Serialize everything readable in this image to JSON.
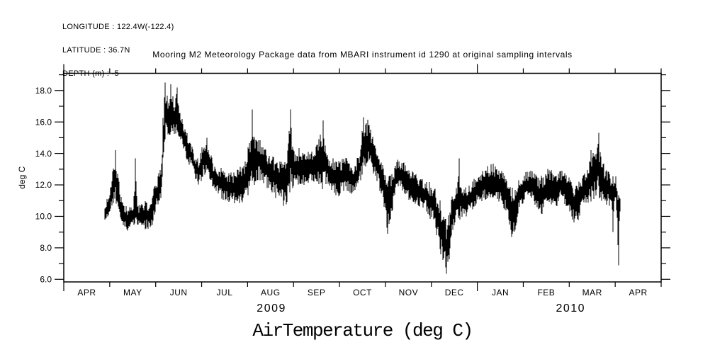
{
  "header": {
    "lines": [
      "LONGITUDE : 122.4W(-122.4)",
      "LATITUDE : 36.7N",
      "DEPTH (m) : -5"
    ]
  },
  "title": "Mooring M2 Meteorology Package data from MBARI instrument id 1290 at original sampling intervals",
  "footer_label": "AirTemperature (deg C)",
  "colors": {
    "ink": "#000000",
    "background": "#ffffff"
  },
  "chart_data": {
    "type": "line",
    "title": "Mooring M2 Meteorology Package data from MBARI instrument id 1290 at original sampling intervals",
    "ylabel": "deg C",
    "xlabel": "AirTemperature (deg C)",
    "ylim": [
      5.83,
      19.09
    ],
    "y_major_ticks": [
      6,
      8,
      10,
      12,
      14,
      16,
      18
    ],
    "y_tick_labels": [
      "6.0",
      "8.0",
      "10.0",
      "12.0",
      "14.0",
      "16.0",
      "18.0"
    ],
    "y_minor_step": 1,
    "grid": false,
    "legend": "none",
    "x_month_labels": [
      "APR",
      "MAY",
      "JUN",
      "JUL",
      "AUG",
      "SEP",
      "OCT",
      "NOV",
      "DEC",
      "JAN",
      "FEB",
      "MAR",
      "APR"
    ],
    "x_major_tick_months": [
      0,
      9
    ],
    "x_year_labels": [
      {
        "label": "2009",
        "t": 4.52
      },
      {
        "label": "2010",
        "t": 11.03
      }
    ],
    "series": [
      {
        "name": "AirTemperature",
        "units": "deg C",
        "t_start": 0.894,
        "t_end": 12.1,
        "envelope": [
          [
            0.89,
            10.2,
            0.5
          ],
          [
            0.96,
            10.6,
            0.7
          ],
          [
            1.02,
            11.2,
            0.8
          ],
          [
            1.08,
            12.0,
            1.2
          ],
          [
            1.13,
            12.6,
            1.6
          ],
          [
            1.17,
            11.6,
            1.6
          ],
          [
            1.23,
            10.6,
            0.8
          ],
          [
            1.31,
            10.0,
            0.7
          ],
          [
            1.42,
            9.8,
            0.8
          ],
          [
            1.51,
            10.0,
            0.6
          ],
          [
            1.56,
            11.2,
            2.0
          ],
          [
            1.6,
            10.0,
            0.7
          ],
          [
            1.7,
            9.9,
            0.9
          ],
          [
            1.8,
            10.1,
            1.0
          ],
          [
            1.9,
            10.0,
            0.8
          ],
          [
            1.94,
            10.5,
            1.2
          ],
          [
            2.0,
            11.3,
            0.9
          ],
          [
            2.07,
            11.8,
            1.0
          ],
          [
            2.13,
            12.5,
            1.2
          ],
          [
            2.16,
            14.5,
            2.0
          ],
          [
            2.21,
            16.6,
            1.8
          ],
          [
            2.27,
            16.4,
            1.5
          ],
          [
            2.33,
            16.8,
            1.6
          ],
          [
            2.41,
            16.2,
            1.3
          ],
          [
            2.47,
            16.4,
            1.6
          ],
          [
            2.54,
            15.8,
            1.2
          ],
          [
            2.62,
            15.0,
            1.0
          ],
          [
            2.7,
            14.3,
            0.9
          ],
          [
            2.78,
            13.8,
            0.8
          ],
          [
            2.85,
            13.2,
            0.7
          ],
          [
            2.93,
            12.8,
            0.9
          ],
          [
            3.04,
            13.6,
            1.1
          ],
          [
            3.11,
            13.8,
            1.1
          ],
          [
            3.19,
            13.2,
            0.9
          ],
          [
            3.27,
            12.4,
            0.9
          ],
          [
            3.39,
            12.2,
            1.0
          ],
          [
            3.55,
            11.9,
            1.0
          ],
          [
            3.7,
            11.8,
            1.0
          ],
          [
            3.86,
            12.0,
            1.2
          ],
          [
            3.98,
            12.5,
            1.3
          ],
          [
            4.09,
            13.8,
            2.4
          ],
          [
            4.16,
            13.4,
            1.5
          ],
          [
            4.24,
            13.8,
            1.4
          ],
          [
            4.35,
            13.2,
            1.2
          ],
          [
            4.47,
            12.8,
            1.2
          ],
          [
            4.6,
            12.5,
            1.3
          ],
          [
            4.7,
            12.2,
            1.3
          ],
          [
            4.83,
            12.0,
            1.6
          ],
          [
            4.93,
            14.0,
            2.4
          ],
          [
            5.01,
            13.0,
            1.2
          ],
          [
            5.12,
            13.2,
            1.2
          ],
          [
            5.24,
            13.0,
            1.0
          ],
          [
            5.4,
            13.2,
            1.1
          ],
          [
            5.52,
            13.5,
            1.3
          ],
          [
            5.64,
            13.6,
            2.0
          ],
          [
            5.74,
            13.0,
            1.0
          ],
          [
            5.86,
            12.6,
            1.1
          ],
          [
            5.98,
            12.3,
            1.2
          ],
          [
            6.11,
            12.8,
            1.1
          ],
          [
            6.23,
            12.4,
            0.9
          ],
          [
            6.32,
            12.2,
            0.9
          ],
          [
            6.43,
            13.0,
            1.2
          ],
          [
            6.52,
            14.6,
            1.7
          ],
          [
            6.62,
            14.7,
            1.5
          ],
          [
            6.71,
            14.0,
            1.2
          ],
          [
            6.82,
            13.2,
            1.0
          ],
          [
            6.94,
            12.2,
            1.2
          ],
          [
            7.05,
            10.8,
            1.9
          ],
          [
            7.14,
            11.5,
            1.3
          ],
          [
            7.25,
            12.6,
            1.0
          ],
          [
            7.37,
            12.6,
            1.0
          ],
          [
            7.49,
            12.1,
            1.0
          ],
          [
            7.62,
            11.8,
            1.0
          ],
          [
            7.74,
            11.5,
            1.0
          ],
          [
            7.86,
            11.4,
            1.1
          ],
          [
            7.96,
            11.0,
            1.2
          ],
          [
            8.05,
            10.8,
            1.2
          ],
          [
            8.14,
            9.8,
            1.5
          ],
          [
            8.23,
            9.0,
            1.8
          ],
          [
            8.33,
            8.0,
            1.9
          ],
          [
            8.39,
            8.8,
            1.6
          ],
          [
            8.45,
            10.2,
            1.2
          ],
          [
            8.54,
            10.8,
            1.1
          ],
          [
            8.6,
            11.2,
            1.6
          ],
          [
            8.7,
            10.8,
            1.0
          ],
          [
            8.79,
            11.0,
            1.0
          ],
          [
            8.88,
            11.3,
            1.0
          ],
          [
            8.97,
            11.6,
            1.0
          ],
          [
            9.07,
            11.9,
            1.0
          ],
          [
            9.16,
            12.0,
            1.0
          ],
          [
            9.25,
            12.2,
            1.1
          ],
          [
            9.34,
            12.3,
            1.1
          ],
          [
            9.44,
            12.0,
            1.0
          ],
          [
            9.53,
            11.8,
            1.1
          ],
          [
            9.62,
            11.5,
            1.2
          ],
          [
            9.71,
            10.5,
            1.8
          ],
          [
            9.81,
            10.2,
            1.6
          ],
          [
            9.9,
            11.3,
            1.1
          ],
          [
            9.99,
            11.8,
            1.0
          ],
          [
            10.08,
            12.0,
            1.0
          ],
          [
            10.18,
            11.9,
            1.0
          ],
          [
            10.27,
            11.7,
            1.0
          ],
          [
            10.36,
            11.3,
            1.4
          ],
          [
            10.45,
            11.5,
            1.2
          ],
          [
            10.55,
            12.0,
            1.2
          ],
          [
            10.64,
            11.8,
            1.1
          ],
          [
            10.73,
            11.7,
            1.2
          ],
          [
            10.82,
            12.0,
            1.0
          ],
          [
            10.92,
            11.8,
            1.1
          ],
          [
            11.01,
            11.2,
            1.4
          ],
          [
            11.1,
            10.8,
            1.2
          ],
          [
            11.19,
            10.9,
            1.2
          ],
          [
            11.29,
            11.5,
            1.1
          ],
          [
            11.38,
            11.8,
            1.2
          ],
          [
            11.47,
            12.3,
            1.5
          ],
          [
            11.57,
            12.8,
            1.8
          ],
          [
            11.63,
            13.2,
            2.0
          ],
          [
            11.69,
            12.4,
            1.4
          ],
          [
            11.78,
            12.0,
            1.2
          ],
          [
            11.87,
            11.7,
            1.2
          ],
          [
            11.95,
            11.2,
            1.4
          ],
          [
            12.01,
            11.8,
            0.9
          ],
          [
            12.06,
            10.0,
            2.2
          ],
          [
            12.1,
            10.6,
            0.6
          ]
        ],
        "spikes": [
          [
            1.13,
            14.2
          ],
          [
            1.56,
            13.7
          ],
          [
            2.21,
            18.5
          ],
          [
            2.33,
            18.4
          ],
          [
            2.47,
            18.2
          ],
          [
            3.11,
            15.0
          ],
          [
            4.1,
            16.8
          ],
          [
            4.94,
            16.8
          ],
          [
            5.64,
            16.1
          ],
          [
            6.53,
            16.3
          ],
          [
            7.05,
            8.9
          ],
          [
            8.33,
            6.35
          ],
          [
            8.6,
            13.7
          ],
          [
            9.75,
            8.7
          ],
          [
            11.47,
            14.2
          ],
          [
            11.64,
            15.3
          ],
          [
            11.95,
            9.0
          ],
          [
            12.07,
            6.9
          ]
        ]
      }
    ]
  }
}
